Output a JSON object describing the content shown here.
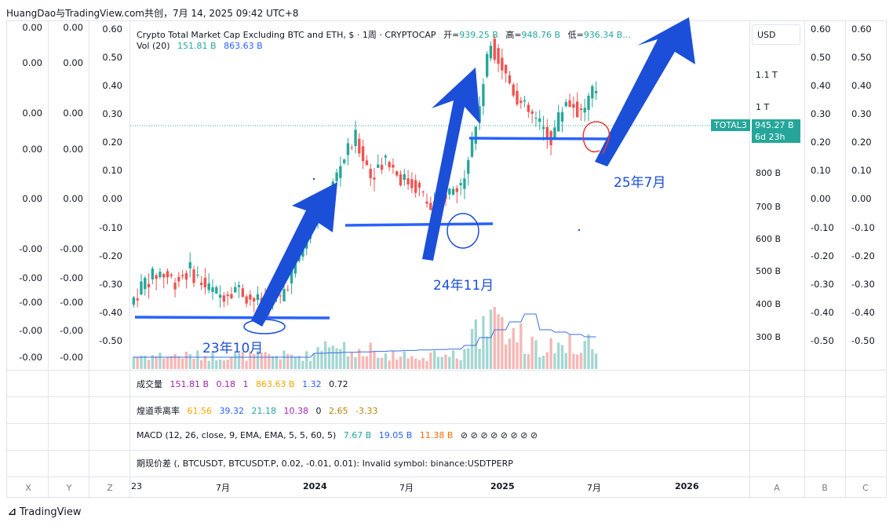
{
  "header": {
    "caption": "HuangDao与TradingView.com共创，7月 14, 2025 09:42 UTC+8"
  },
  "left_axis_x": [
    "0.00",
    "0.00",
    "0.00",
    "0.00",
    "0.00",
    "-0.00",
    "-0.00",
    "-0.00",
    "-0.00",
    "-0.00"
  ],
  "left_axis_y": [
    "0.00",
    "0.00",
    "0.00",
    "0.00",
    "0.00",
    "-0.00",
    "-0.00",
    "-0.00",
    "-0.00",
    "-0.00"
  ],
  "left_axis_z": [
    "0.60",
    "0.50",
    "0.40",
    "0.30",
    "0.20",
    "0.10",
    "0.00",
    "-0.10",
    "-0.20",
    "-0.30",
    "-0.40",
    "-0.50"
  ],
  "right_axis_a": [
    "0.60",
    "0.50",
    "0.40",
    "0.30",
    "0.20",
    "0.10",
    "0.00",
    "-0.10",
    "-0.20",
    "-0.30",
    "-0.40",
    "-0.50"
  ],
  "right_axis_b": [
    "0.60",
    "0.50",
    "0.40",
    "0.30",
    "0.20",
    "0.10",
    "0.00",
    "-0.10",
    "-0.20",
    "-0.30",
    "-0.40",
    "-0.50"
  ],
  "price_axis": [
    "1.1 T",
    "1 T",
    "800 B",
    "700 B",
    "600 B",
    "500 B",
    "400 B",
    "300 B"
  ],
  "currency": "USD",
  "price_tag": {
    "symbol": "TOTAL3",
    "value": "945.27 B",
    "countdown": "6d 23h"
  },
  "legend": {
    "title": "Crypto Total Market Cap Excluding BTC and ETH, $ · 1周 · CRYPTOCAP",
    "open_label": "开=",
    "open": "939.25 B",
    "high_label": "高=",
    "high": "948.76 B",
    "low_label": "低=",
    "low": "936.34 B...",
    "vol_label": "Vol (20)",
    "vol1": "151.81 B",
    "vol2": "863.63 B"
  },
  "panes": {
    "volume": {
      "label": "成交量",
      "v1": "151.81 B",
      "v2": "0.18",
      "v3": "1",
      "v4": "863.63 B",
      "v5": "1.32",
      "v6": "0.72"
    },
    "bias": {
      "label": "煌道乖离率",
      "v1": "61.56",
      "v2": "39.32",
      "v3": "21.18",
      "v4": "10.38",
      "v5": "0",
      "v6": "2.65",
      "v7": "-3.33"
    },
    "macd": {
      "label": "MACD (12, 26, close, 9, EMA, EMA, 5, 5, 60, 5)",
      "v1": "7.67 B",
      "v2": "19.05 B",
      "v3": "11.38 B",
      "v4": "⊘ ⊘ ⊘ ⊘ ⊘ ⊘ ⊘ ⊘"
    },
    "spread": {
      "label": "期现价差 (, BTCUSDT, BTCUSDT.P, 0.02, -0.01, 0.01): Invalid symbol: binance:USDTPERP"
    }
  },
  "x_axis": [
    "23",
    "7月",
    "2024",
    "7月",
    "2025",
    "7月",
    "2026"
  ],
  "footer_labels": {
    "x": "X",
    "y": "Y",
    "z": "Z",
    "a": "A",
    "b": "B",
    "c": "C"
  },
  "annotations": {
    "a1": "23年10月",
    "a2": "24年11月",
    "a3": "25年7月"
  },
  "logo": "TradingView",
  "colors": {
    "up": "#26a69a",
    "down": "#ef5350",
    "annotation": "#1c4fd8",
    "circle_red": "#e53935"
  },
  "chart_data": {
    "type": "candlestick",
    "title": "Crypto Total Market Cap Excluding BTC and ETH, $ · 1周 · CRYPTOCAP",
    "unit": "B USD",
    "x_range": [
      "2023-01",
      "2026-06"
    ],
    "y_range": [
      280,
      1250
    ],
    "scale": "log",
    "candles_sampled": [
      {
        "t": "2023-01",
        "o": 370,
        "c": 410
      },
      {
        "t": "2023-02",
        "o": 410,
        "c": 425
      },
      {
        "t": "2023-03",
        "o": 425,
        "c": 410
      },
      {
        "t": "2023-04",
        "o": 410,
        "c": 430
      },
      {
        "t": "2023-05",
        "o": 430,
        "c": 400
      },
      {
        "t": "2023-06",
        "o": 400,
        "c": 385
      },
      {
        "t": "2023-07",
        "o": 385,
        "c": 400
      },
      {
        "t": "2023-08",
        "o": 400,
        "c": 380
      },
      {
        "t": "2023-09",
        "o": 380,
        "c": 370
      },
      {
        "t": "2023-10",
        "o": 370,
        "c": 380
      },
      {
        "t": "2023-11",
        "o": 380,
        "c": 440
      },
      {
        "t": "2023-12",
        "o": 440,
        "c": 520
      },
      {
        "t": "2024-01",
        "o": 520,
        "c": 560
      },
      {
        "t": "2024-02",
        "o": 560,
        "c": 680
      },
      {
        "t": "2024-03",
        "o": 680,
        "c": 760
      },
      {
        "t": "2024-04",
        "o": 760,
        "c": 650
      },
      {
        "t": "2024-05",
        "o": 650,
        "c": 700
      },
      {
        "t": "2024-06",
        "o": 700,
        "c": 640
      },
      {
        "t": "2024-07",
        "o": 640,
        "c": 620
      },
      {
        "t": "2024-08",
        "o": 620,
        "c": 560
      },
      {
        "t": "2024-09",
        "o": 560,
        "c": 600
      },
      {
        "t": "2024-10",
        "o": 600,
        "c": 620
      },
      {
        "t": "2024-11",
        "o": 620,
        "c": 800
      },
      {
        "t": "2024-12",
        "o": 800,
        "c": 1150
      },
      {
        "t": "2025-01",
        "o": 1150,
        "c": 1000
      },
      {
        "t": "2025-02",
        "o": 1000,
        "c": 880
      },
      {
        "t": "2025-03",
        "o": 880,
        "c": 820
      },
      {
        "t": "2025-04",
        "o": 820,
        "c": 760
      },
      {
        "t": "2025-05",
        "o": 760,
        "c": 900
      },
      {
        "t": "2025-06",
        "o": 900,
        "c": 850
      },
      {
        "t": "2025-07",
        "o": 850,
        "c": 945.27
      }
    ],
    "volume_ma_label": "Vol (20)"
  }
}
